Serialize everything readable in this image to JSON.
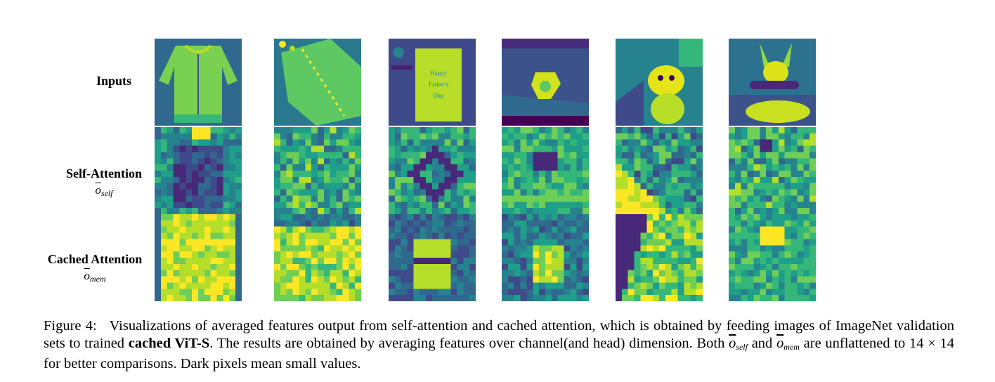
{
  "rows": {
    "inputs": {
      "label": "Inputs"
    },
    "self_attention": {
      "label": "Self-Attention",
      "symbol": "o",
      "subscript": "self"
    },
    "cached_attention": {
      "label": "Cached Attention",
      "symbol": "o",
      "subscript": "mem"
    }
  },
  "input_image_text": {
    "card_line1": "Happy",
    "card_line2": "Father's",
    "card_line3": "Day"
  },
  "caption": {
    "figure_label": "Figure 4:",
    "text_part1": "Visualizations of averaged features output from self-attention and cached attention, which is obtained by feeding images of ImageNet validation sets to trained",
    "bold_model": "cached ViT-S",
    "text_part2": ". The results are obtained by averaging features over channel(and head) dimension. Both",
    "sym1": "o",
    "sub1": "self",
    "and_word": "and",
    "sym2": "o",
    "sub2": "mem",
    "text_part3": "are unflattened to 14 × 14 for better comparisons. Dark pixels mean small values."
  },
  "colors": {
    "viridis_dark": "#440154",
    "viridis_blue": "#3b528b",
    "viridis_teal": "#21918c",
    "viridis_green": "#5ec962",
    "viridis_yellow": "#fde725"
  }
}
